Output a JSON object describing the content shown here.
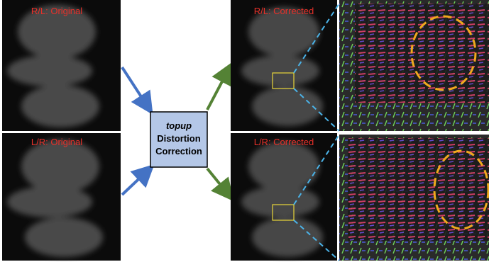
{
  "panels": {
    "original_rl": "R/L: Original",
    "original_lr": "L/R: Original",
    "corrected_rl": "R/L: Corrected",
    "corrected_lr": "L/R: Corrected"
  },
  "process": {
    "tool": "topup",
    "lines": [
      "Distortion",
      "Correction"
    ]
  }
}
